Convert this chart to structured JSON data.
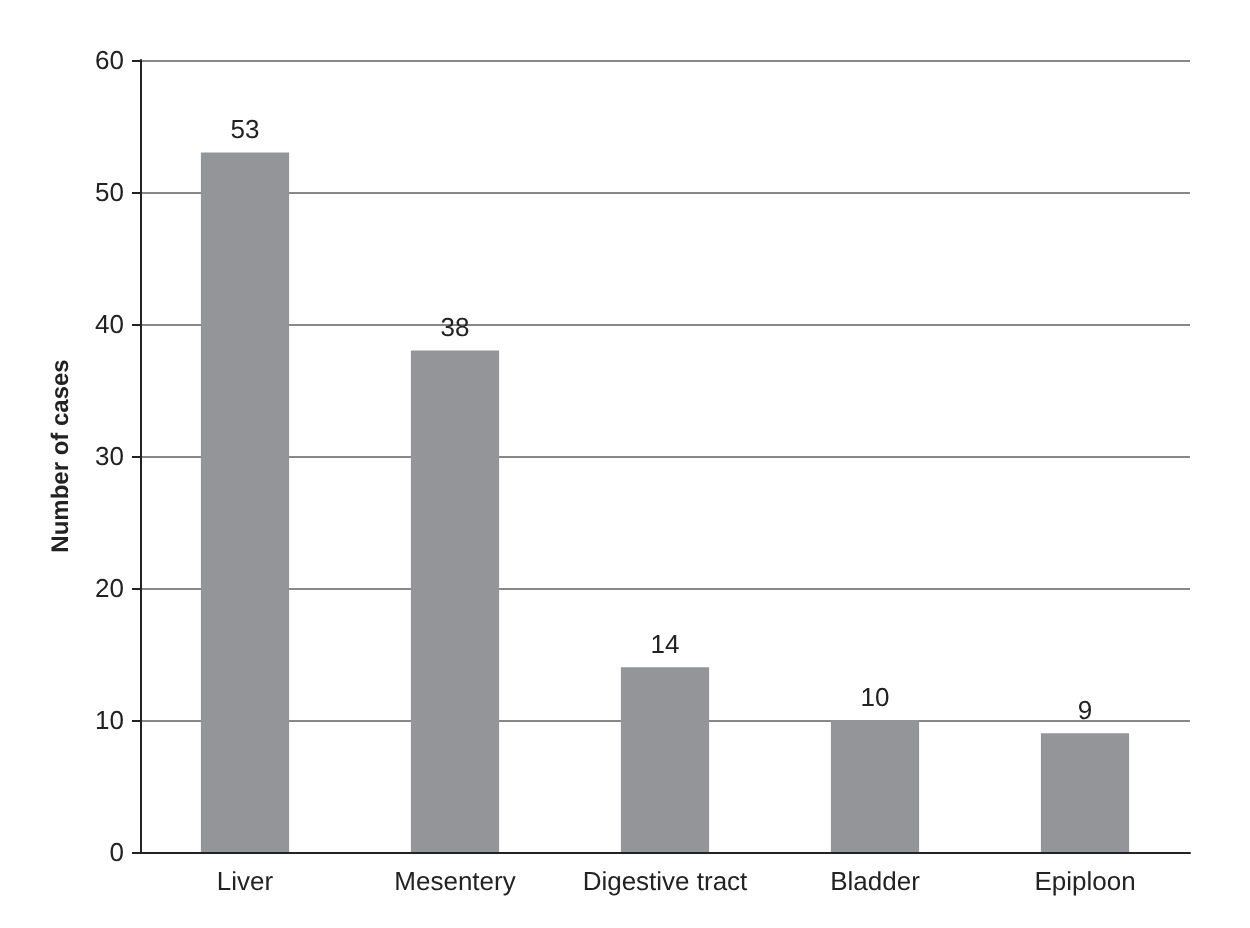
{
  "chart_data": {
    "type": "bar",
    "ylabel": "Number of cases",
    "categories": [
      "Liver",
      "Mesentery",
      "Digestive tract",
      "Bladder",
      "Epiploon"
    ],
    "values": [
      53,
      38,
      14,
      10,
      9
    ],
    "color": "#939598",
    "ylim": [
      0,
      60
    ],
    "yticks": [
      0,
      10,
      20,
      30,
      40,
      50,
      60
    ],
    "grid": "y",
    "data_labels": true
  }
}
